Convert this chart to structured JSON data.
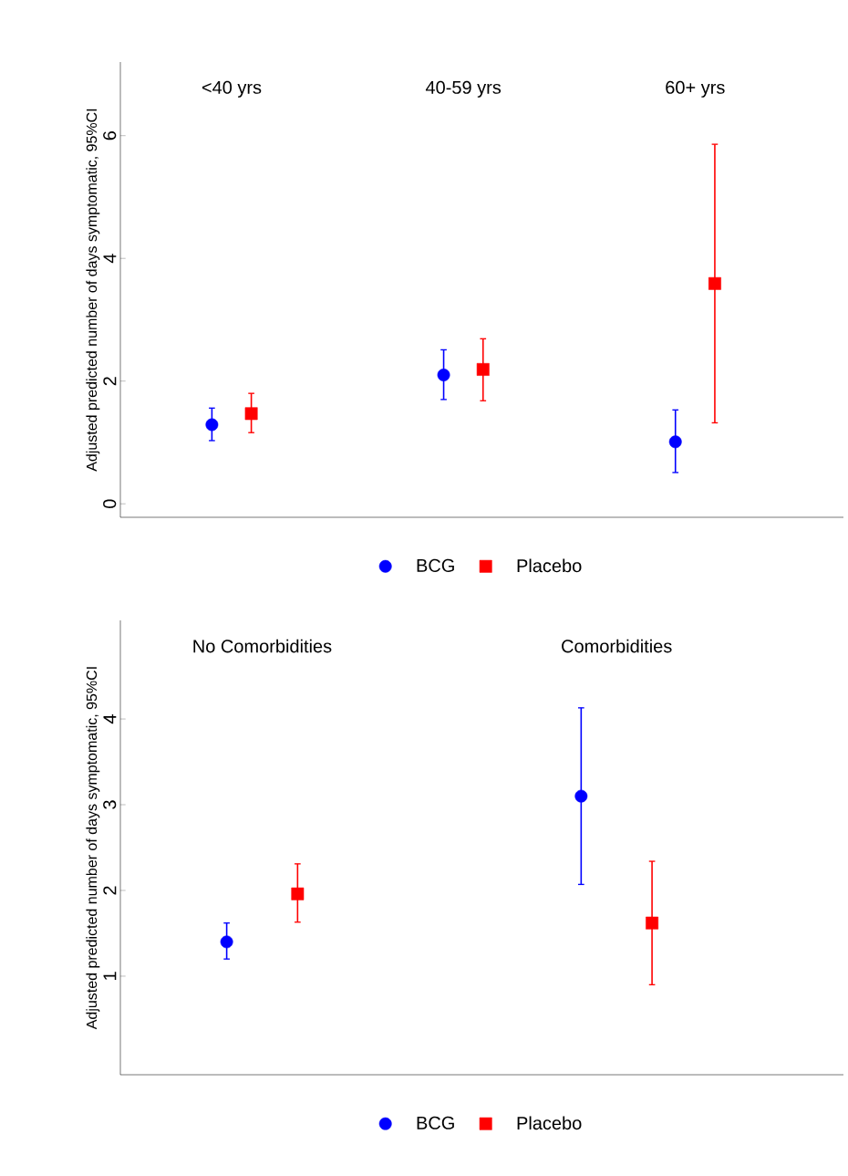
{
  "chart_data": [
    {
      "type": "scatter",
      "ylabel": "Adjusted predicted number of days symptomatic, 95%CI",
      "categories": [
        "<40 yrs",
        "40-59 yrs",
        "60+ yrs"
      ],
      "ylim": [
        -0.22,
        7.2
      ],
      "yticks": [
        0,
        2,
        4,
        6
      ],
      "grid": false,
      "legend": "bottom",
      "series": [
        {
          "name": "BCG",
          "color": "#0000ff",
          "marker": "circle",
          "values": [
            1.29,
            2.1,
            1.01
          ],
          "errors": [
            [
              1.03,
              1.56
            ],
            [
              1.7,
              2.51
            ],
            [
              0.51,
              1.53
            ]
          ]
        },
        {
          "name": "Placebo",
          "color": "#ff0000",
          "marker": "square",
          "values": [
            1.47,
            2.19,
            3.59
          ],
          "errors": [
            [
              1.16,
              1.8
            ],
            [
              1.68,
              2.69
            ],
            [
              1.32,
              5.86
            ]
          ]
        }
      ]
    },
    {
      "type": "scatter",
      "ylabel": "Adjusted predicted number of days symptomatic, 95%CI",
      "categories": [
        "No Comorbidities",
        "Comorbidities"
      ],
      "ylim": [
        -0.15,
        5.15
      ],
      "yticks": [
        1,
        2,
        3,
        4
      ],
      "grid": false,
      "legend": "bottom",
      "series": [
        {
          "name": "BCG",
          "color": "#0000ff",
          "marker": "circle",
          "values": [
            1.4,
            3.1
          ],
          "errors": [
            [
              1.2,
              1.62
            ],
            [
              2.07,
              4.13
            ]
          ]
        },
        {
          "name": "Placebo",
          "color": "#ff0000",
          "marker": "square",
          "values": [
            1.96,
            1.62
          ],
          "errors": [
            [
              1.63,
              2.31
            ],
            [
              0.9,
              2.34
            ]
          ]
        }
      ]
    }
  ]
}
